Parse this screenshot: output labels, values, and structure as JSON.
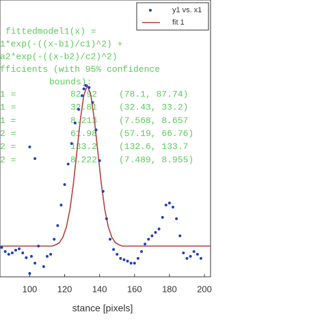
{
  "chart_data": {
    "type": "scatter",
    "xlabel": "stance [pixels]",
    "xlim": [
      83,
      203.5
    ],
    "xticks": [
      100,
      120,
      140,
      160,
      180,
      200
    ],
    "ylim": [
      -45,
      360
    ],
    "legend": "upper right",
    "series": [
      {
        "name": "y1 vs. x1",
        "kind": "scatter",
        "color": "#1f3fbf",
        "x": [
          84,
          86,
          88,
          90,
          92,
          94,
          96,
          98,
          100,
          100,
          101,
          103,
          103,
          105,
          108,
          110,
          112,
          114,
          116,
          118,
          120,
          122,
          124,
          126,
          128,
          130,
          131,
          132,
          134,
          136,
          138,
          140,
          142,
          144,
          146,
          148,
          150,
          152,
          154,
          156,
          158,
          160,
          162,
          164,
          166,
          168,
          170,
          172,
          174,
          176,
          178,
          180,
          182,
          184,
          186,
          188,
          190,
          192,
          194,
          196,
          198
        ],
        "values": [
          -2,
          -8,
          -12,
          -10,
          -6,
          -4,
          -10,
          -17,
          -40,
          145,
          -15,
          -25,
          128,
          0,
          -30,
          -15,
          -12,
          10,
          30,
          60,
          90,
          120,
          150,
          180,
          200,
          220,
          230,
          235,
          232,
          210,
          170,
          125,
          80,
          40,
          10,
          -5,
          -12,
          -18,
          -20,
          -22,
          -25,
          -25,
          -18,
          -8,
          3,
          10,
          15,
          20,
          25,
          42,
          60,
          63,
          57,
          40,
          15,
          -10,
          -18,
          -15,
          -8,
          -12,
          -18
        ]
      },
      {
        "name": "fit 1",
        "kind": "line",
        "color": "#b0413e",
        "x": [
          83,
          113,
          115,
          117,
          119,
          121,
          123,
          125,
          127,
          129,
          131,
          133,
          135,
          137,
          139,
          141,
          143,
          145,
          147,
          149,
          151,
          153,
          203.5
        ],
        "values": [
          0,
          0,
          2,
          5,
          13,
          28,
          53,
          91,
          138,
          185,
          221,
          235,
          221,
          185,
          138,
          91,
          53,
          28,
          13,
          5,
          2,
          0,
          0
        ]
      }
    ],
    "annotation": {
      "lines": [
        "fittedmodel1(x) =",
        "1*exp(-((x-b1)/c1)^2) +",
        "a2*exp(-((x-b2)/c2)^2)",
        "fficients (with 95% confidence",
        "bounds):"
      ],
      "rows": [
        [
          "1 =",
          "82.92",
          "(78.1, 87.74)"
        ],
        [
          "1 =",
          "32.81",
          "(32.43, 33.2)"
        ],
        [
          "1 =",
          "8.213",
          "(7.568, 8.657"
        ],
        [
          "2 =",
          "61.98",
          "(57.19, 66.76)"
        ],
        [
          "2 =",
          "133.2",
          "(132.6, 133.7"
        ],
        [
          "2 =",
          "8.222",
          "(7.489, 8.955)"
        ]
      ]
    }
  }
}
